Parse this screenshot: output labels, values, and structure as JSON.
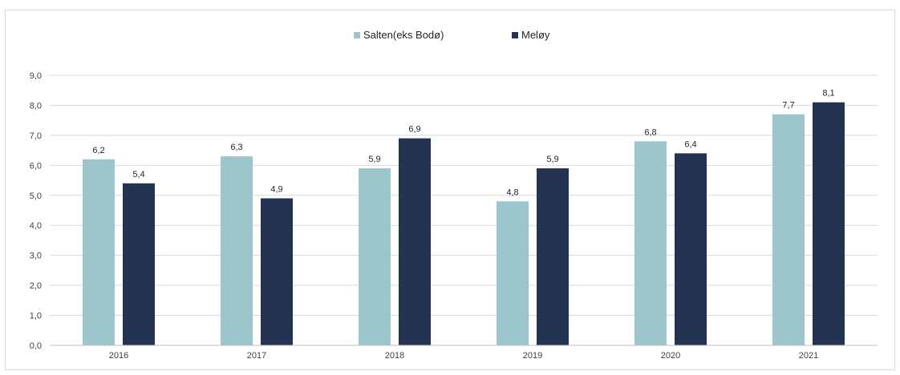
{
  "chart_data": {
    "type": "bar",
    "categories": [
      "2016",
      "2017",
      "2018",
      "2019",
      "2020",
      "2021"
    ],
    "series": [
      {
        "name": "Salten(eks Bodø)",
        "color": "#9dc5cc",
        "values": [
          6.2,
          6.3,
          5.9,
          4.8,
          6.8,
          7.7
        ],
        "labels": [
          "6,2",
          "6,3",
          "5,9",
          "4,8",
          "6,8",
          "7,7"
        ]
      },
      {
        "name": "Meløy",
        "color": "#243352",
        "values": [
          5.4,
          4.9,
          6.9,
          5.9,
          6.4,
          8.1
        ],
        "labels": [
          "5,4",
          "4,9",
          "6,9",
          "5,9",
          "6,4",
          "8,1"
        ]
      }
    ],
    "ylim": [
      0,
      9
    ],
    "yticks": [
      "0,0",
      "1,0",
      "2,0",
      "3,0",
      "4,0",
      "5,0",
      "6,0",
      "7,0",
      "8,0",
      "9,0"
    ],
    "grid": true,
    "legend_position": "top-center",
    "gridline_color": "#d9d9d9",
    "axis_color": "#bfbfbf"
  }
}
